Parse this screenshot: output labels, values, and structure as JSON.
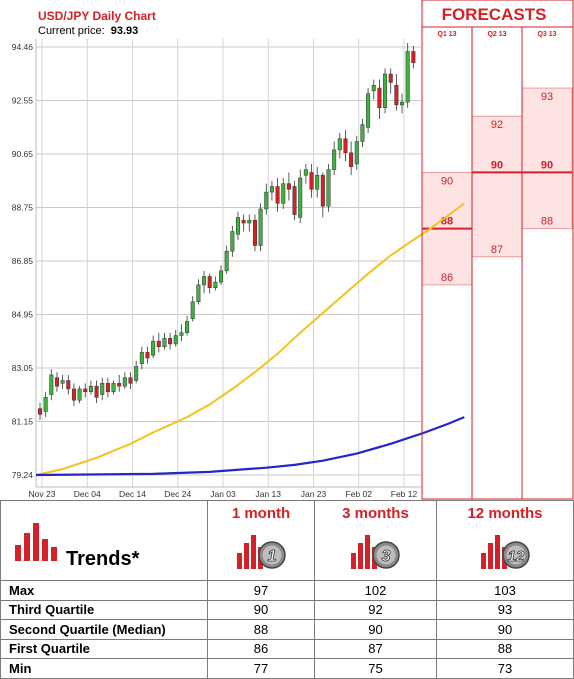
{
  "chart": {
    "title": "USD/JPY Daily Chart",
    "price_label": "Current price:",
    "price_value": "93.93",
    "forecasts_title": "FORECASTS"
  },
  "chart_data": {
    "type": "candlestick",
    "title": "USD/JPY Daily Chart",
    "y_ticks": [
      "94.46",
      "92.55",
      "90.65",
      "88.75",
      "86.85",
      "84.95",
      "83.05",
      "81.15",
      "79.24"
    ],
    "ylim": [
      79.24,
      94.46
    ],
    "x_ticks": [
      "Nov 23",
      "Dec 04",
      "Dec 14",
      "Dec 24",
      "Jan 03",
      "Jan 13",
      "Jan 23",
      "Feb 02",
      "Feb 12"
    ],
    "grid": true,
    "candles": [
      [
        81.6,
        81.4,
        81.8,
        81.2
      ],
      [
        81.5,
        82.0,
        82.2,
        81.3
      ],
      [
        82.1,
        82.8,
        83.0,
        81.9
      ],
      [
        82.7,
        82.4,
        82.9,
        82.2
      ],
      [
        82.5,
        82.6,
        82.8,
        82.3
      ],
      [
        82.6,
        82.3,
        82.8,
        82.1
      ],
      [
        82.3,
        81.9,
        82.5,
        81.7
      ],
      [
        81.9,
        82.3,
        82.4,
        81.8
      ],
      [
        82.3,
        82.2,
        82.5,
        82.0
      ],
      [
        82.2,
        82.4,
        82.6,
        82.1
      ],
      [
        82.4,
        82.0,
        82.6,
        81.8
      ],
      [
        82.1,
        82.5,
        82.7,
        81.9
      ],
      [
        82.5,
        82.2,
        82.7,
        82.0
      ],
      [
        82.2,
        82.5,
        82.6,
        82.1
      ],
      [
        82.5,
        82.4,
        82.8,
        82.2
      ],
      [
        82.4,
        82.7,
        82.9,
        82.3
      ],
      [
        82.7,
        82.5,
        82.9,
        82.3
      ],
      [
        82.6,
        83.1,
        83.3,
        82.5
      ],
      [
        83.2,
        83.6,
        83.8,
        83.0
      ],
      [
        83.6,
        83.4,
        83.8,
        83.2
      ],
      [
        83.5,
        84.0,
        84.2,
        83.4
      ],
      [
        84.0,
        83.8,
        84.3,
        83.6
      ],
      [
        83.8,
        84.1,
        84.3,
        83.7
      ],
      [
        84.1,
        83.9,
        84.3,
        83.7
      ],
      [
        83.9,
        84.2,
        84.4,
        83.8
      ],
      [
        84.2,
        84.3,
        84.6,
        84.0
      ],
      [
        84.3,
        84.7,
        84.9,
        84.2
      ],
      [
        84.8,
        85.4,
        85.6,
        84.7
      ],
      [
        85.4,
        86.0,
        86.2,
        85.3
      ],
      [
        86.0,
        86.3,
        86.5,
        85.7
      ],
      [
        86.3,
        85.9,
        86.4,
        85.7
      ],
      [
        85.9,
        86.1,
        86.3,
        85.8
      ],
      [
        86.1,
        86.5,
        86.7,
        86.0
      ],
      [
        86.5,
        87.2,
        87.4,
        86.4
      ],
      [
        87.2,
        87.9,
        88.1,
        87.0
      ],
      [
        87.8,
        88.4,
        88.6,
        87.6
      ],
      [
        88.3,
        88.2,
        88.5,
        87.9
      ],
      [
        88.2,
        88.3,
        88.5,
        87.9
      ],
      [
        88.3,
        87.4,
        88.5,
        87.2
      ],
      [
        87.4,
        88.7,
        88.9,
        87.2
      ],
      [
        88.7,
        89.3,
        89.6,
        88.5
      ],
      [
        89.3,
        89.5,
        89.7,
        89.0
      ],
      [
        89.5,
        88.9,
        89.8,
        88.6
      ],
      [
        88.9,
        89.6,
        89.8,
        88.7
      ],
      [
        89.6,
        89.4,
        90.0,
        89.0
      ],
      [
        89.5,
        88.5,
        89.7,
        88.3
      ],
      [
        88.4,
        89.8,
        90.1,
        88.2
      ],
      [
        89.9,
        90.1,
        90.3,
        89.6
      ],
      [
        90.0,
        89.4,
        90.3,
        89.1
      ],
      [
        89.4,
        89.9,
        90.2,
        89.1
      ],
      [
        89.9,
        88.8,
        90.0,
        88.4
      ],
      [
        88.8,
        90.1,
        90.3,
        88.6
      ],
      [
        90.1,
        90.8,
        91.1,
        89.9
      ],
      [
        90.8,
        91.2,
        91.4,
        90.5
      ],
      [
        91.2,
        90.7,
        91.5,
        90.4
      ],
      [
        90.7,
        90.2,
        91.1,
        89.9
      ],
      [
        90.3,
        91.1,
        91.3,
        90.1
      ],
      [
        91.1,
        91.7,
        91.9,
        90.9
      ],
      [
        91.6,
        92.8,
        93.0,
        91.4
      ],
      [
        92.9,
        93.1,
        93.3,
        92.6
      ],
      [
        93.0,
        92.3,
        93.3,
        91.9
      ],
      [
        92.3,
        93.5,
        93.7,
        92.1
      ],
      [
        93.5,
        93.2,
        93.7,
        92.8
      ],
      [
        93.1,
        92.4,
        93.5,
        92.2
      ],
      [
        92.4,
        92.5,
        92.8,
        92.1
      ],
      [
        92.5,
        94.3,
        94.6,
        92.3
      ],
      [
        94.3,
        93.9,
        94.5,
        93.7
      ]
    ],
    "ma_short": [
      [
        0,
        79.24
      ],
      [
        4,
        79.45
      ],
      [
        10,
        79.85
      ],
      [
        16,
        80.35
      ],
      [
        20,
        80.75
      ],
      [
        26,
        81.3
      ],
      [
        30,
        81.75
      ],
      [
        34,
        82.3
      ],
      [
        38,
        82.9
      ],
      [
        42,
        83.55
      ],
      [
        46,
        84.3
      ],
      [
        50,
        85.0
      ],
      [
        54,
        85.7
      ],
      [
        58,
        86.4
      ],
      [
        62,
        87.05
      ],
      [
        66,
        87.6
      ],
      [
        69,
        88.0
      ],
      [
        72,
        88.45
      ],
      [
        75,
        88.9
      ]
    ],
    "ma_long": [
      [
        0,
        79.24
      ],
      [
        20,
        79.28
      ],
      [
        30,
        79.35
      ],
      [
        40,
        79.5
      ],
      [
        45,
        79.6
      ],
      [
        50,
        79.75
      ],
      [
        56,
        80.0
      ],
      [
        62,
        80.35
      ],
      [
        68,
        80.75
      ],
      [
        72,
        81.05
      ],
      [
        75,
        81.3
      ]
    ],
    "forecast_columns": [
      "Q1 13",
      "Q2 13",
      "Q3 13"
    ],
    "forecasts": [
      {
        "quarter": "Q1 13",
        "third_quartile": 90,
        "median": 88,
        "first_quartile": 86
      },
      {
        "quarter": "Q2 13",
        "third_quartile": 92,
        "median": 90,
        "first_quartile": 87
      },
      {
        "quarter": "Q3 13",
        "third_quartile": 93,
        "median": 90,
        "first_quartile": 88
      }
    ]
  },
  "trends": {
    "title": "Trends*",
    "columns": [
      "1 month",
      "3 months",
      "12 months"
    ],
    "badges": [
      "1",
      "3",
      "12"
    ],
    "rows": [
      {
        "label": "Max",
        "values": [
          "97",
          "102",
          "103"
        ]
      },
      {
        "label": "Third Quartile",
        "values": [
          "90",
          "92",
          "93"
        ]
      },
      {
        "label": "Second Quartile (Median)",
        "values": [
          "88",
          "90",
          "90"
        ]
      },
      {
        "label": "First Quartile",
        "values": [
          "86",
          "87",
          "88"
        ]
      },
      {
        "label": "Min",
        "values": [
          "77",
          "75",
          "73"
        ]
      }
    ],
    "colors": {
      "accent": "#d42127",
      "up": "#3fb13f",
      "down": "#d42127",
      "ma_short": "#f4c21c",
      "ma_long": "#2525c8"
    }
  }
}
